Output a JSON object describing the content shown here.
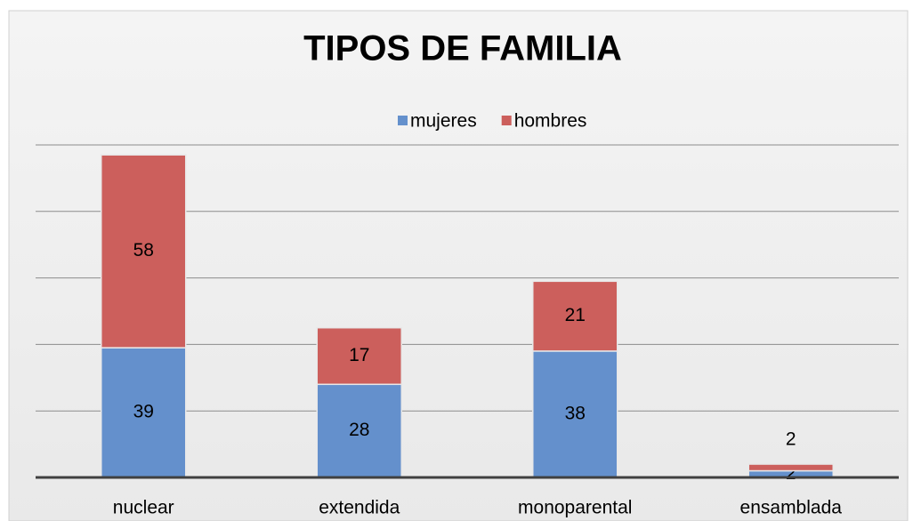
{
  "chart_data": {
    "type": "stacked_bar",
    "title": "TIPOS DE FAMILIA",
    "categories": [
      "nuclear",
      "extendida",
      "monoparental",
      "ensamblada"
    ],
    "series": [
      {
        "name": "mujeres",
        "color": "#6490cc",
        "values": [
          39,
          28,
          38,
          2
        ]
      },
      {
        "name": "hombres",
        "color": "#cc5f5c",
        "values": [
          58,
          17,
          21,
          2
        ]
      }
    ],
    "ylim": [
      0,
      100
    ],
    "yticks": [
      0,
      20,
      40,
      60,
      80,
      100
    ],
    "grid": true,
    "legend": "top"
  }
}
